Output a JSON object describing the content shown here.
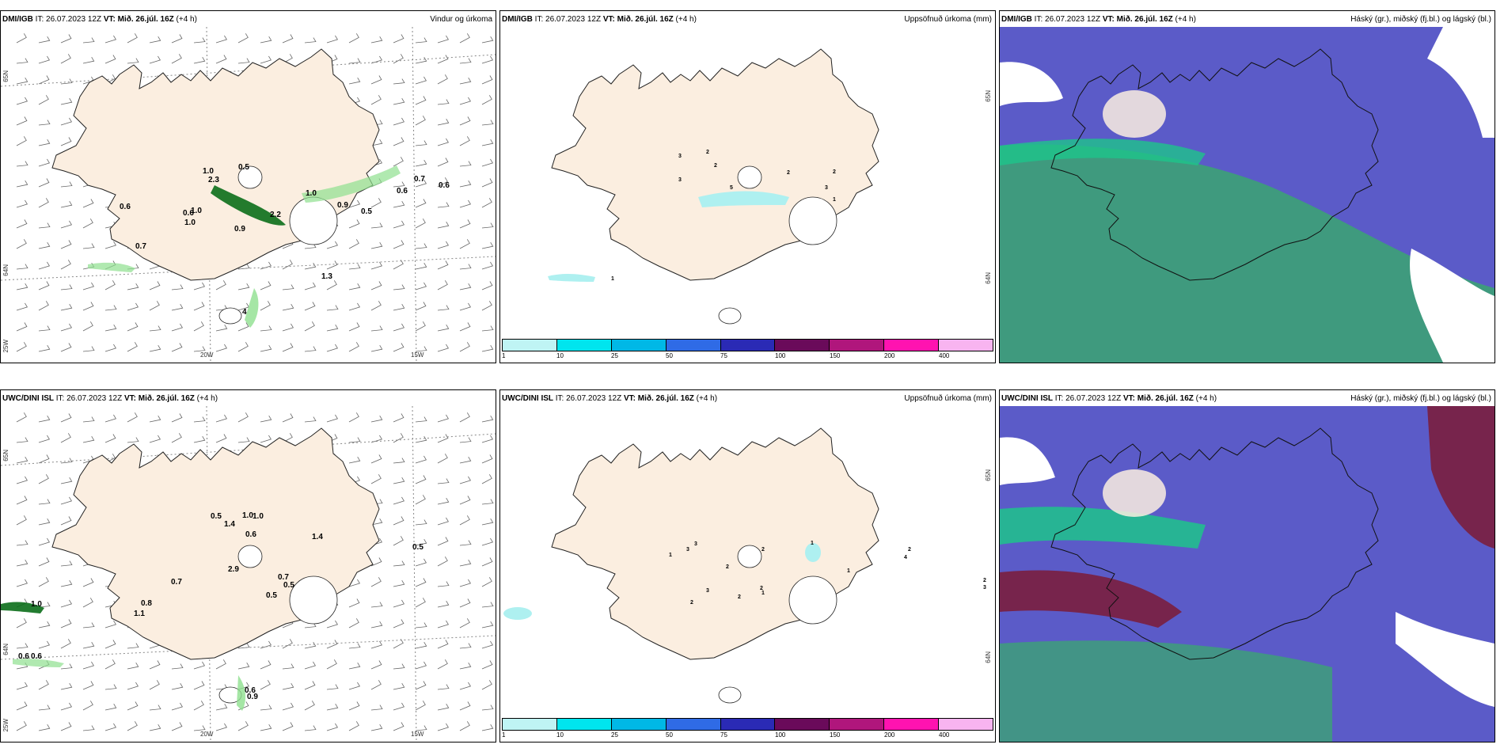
{
  "colors": {
    "land": "#fbeee0",
    "precip_light": "#b9f3b9",
    "precip_dark": "#0b6e1a",
    "accum_cyan": "#aef0f0",
    "cloud_high": "#5b5bc8",
    "cloud_mid": "#3f9a7e",
    "cloud_low": "#7a1e3e"
  },
  "common": {
    "it_label": "IT: 26.07.2023 12Z",
    "vt_label": "VT: Mið. 26.júl. 16Z",
    "lead": "(+4 h)"
  },
  "axis_labels": {
    "lat_65": "65N",
    "lat_64": "64N",
    "lon_20": "20W",
    "lon_15": "15W",
    "lon_25": "25W"
  },
  "legend": {
    "colors": [
      "#bff4f4",
      "#00e5ee",
      "#00b8e6",
      "#2f6be6",
      "#2a2ab5",
      "#6a0a5a",
      "#b0167c",
      "#ff13b0",
      "#f8b4f0"
    ],
    "ticks": [
      "1",
      "10",
      "25",
      "50",
      "75",
      "100",
      "150",
      "200",
      "400"
    ]
  },
  "panels": [
    {
      "model": "DMI/IGB",
      "type": "wind",
      "title": "Vindur og úrkoma",
      "values": [
        "0.6",
        "1.0",
        "0.5",
        "1.0",
        "0.7",
        "1.0",
        "0.6",
        "2.3",
        "1.0",
        "0.9",
        "2.2",
        "0.9",
        "0.5",
        "0.6",
        "0.7",
        "0.6",
        "1.3",
        "4"
      ]
    },
    {
      "model": "DMI/IGB",
      "type": "accum",
      "title": "Uppsöfnuð úrkoma (mm)",
      "values": [
        "1",
        "3",
        "5",
        "3",
        "2",
        "2",
        "2",
        "2",
        "3",
        "1"
      ]
    },
    {
      "model": "DMI/IGB",
      "type": "cloud",
      "title": "Háský (gr.), miðský (fj.bl.) og lágský (bl.)",
      "values": []
    },
    {
      "model": "UWC/DINI ISL",
      "type": "wind",
      "title": "",
      "values": [
        "0.5",
        "1.0",
        "1.4",
        "1.0",
        "0.6",
        "1.4",
        "0.5",
        "2.9",
        "0.7",
        "0.7",
        "0.5",
        "0.5",
        "0.8",
        "1.1",
        "1.0",
        "0.6",
        "0.6",
        "0.6",
        "0.9"
      ]
    },
    {
      "model": "UWC/DINI ISL",
      "type": "accum",
      "title": "Uppsöfnuð úrkoma (mm)",
      "values": [
        "2",
        "3",
        "1",
        "3",
        "3",
        "2",
        "2",
        "3",
        "2",
        "2",
        "2",
        "1",
        "1",
        "1",
        "2",
        "4"
      ]
    },
    {
      "model": "UWC/DINI ISL",
      "type": "cloud",
      "title": "Háský (gr.), miðský (fj.bl.) og lágský (bl.)",
      "values": []
    }
  ]
}
